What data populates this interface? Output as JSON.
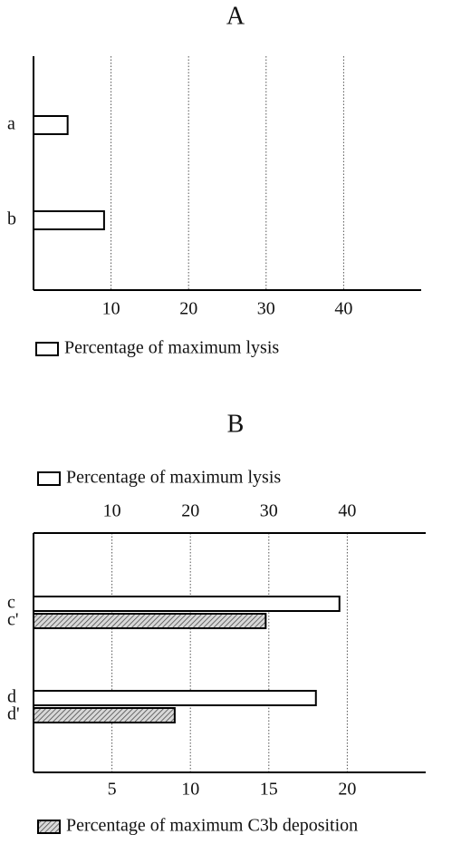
{
  "chart_data": [
    {
      "type": "bar",
      "orientation": "horizontal",
      "title": "A",
      "categories": [
        "a",
        "b"
      ],
      "series": [
        {
          "name": "Percentage of maximum lysis",
          "color": "#ffffff",
          "pattern": "none",
          "values": [
            4.4,
            9.1
          ]
        }
      ],
      "xlim": [
        0,
        50
      ],
      "xticks": [
        10,
        20,
        30,
        40
      ],
      "grid": true
    },
    {
      "type": "bar",
      "orientation": "horizontal",
      "title": "B",
      "categories": [
        "c",
        "c'",
        "d",
        "d'"
      ],
      "series": [
        {
          "name": "Percentage of maximum lysis",
          "color": "#ffffff",
          "pattern": "none",
          "axis": "x",
          "values": [
            39,
            null,
            36,
            null
          ]
        },
        {
          "name": "Percentage of maximum C3b deposition",
          "color": "#bbbbbb",
          "pattern": "hatch",
          "axis": "x2",
          "values": [
            null,
            14.8,
            null,
            9.0
          ]
        }
      ],
      "xlim": [
        0,
        50
      ],
      "xticks": [
        10,
        20,
        30,
        40
      ],
      "x2lim": [
        0,
        25
      ],
      "x2ticks": [
        5,
        10,
        15,
        20
      ],
      "grid": true
    }
  ]
}
